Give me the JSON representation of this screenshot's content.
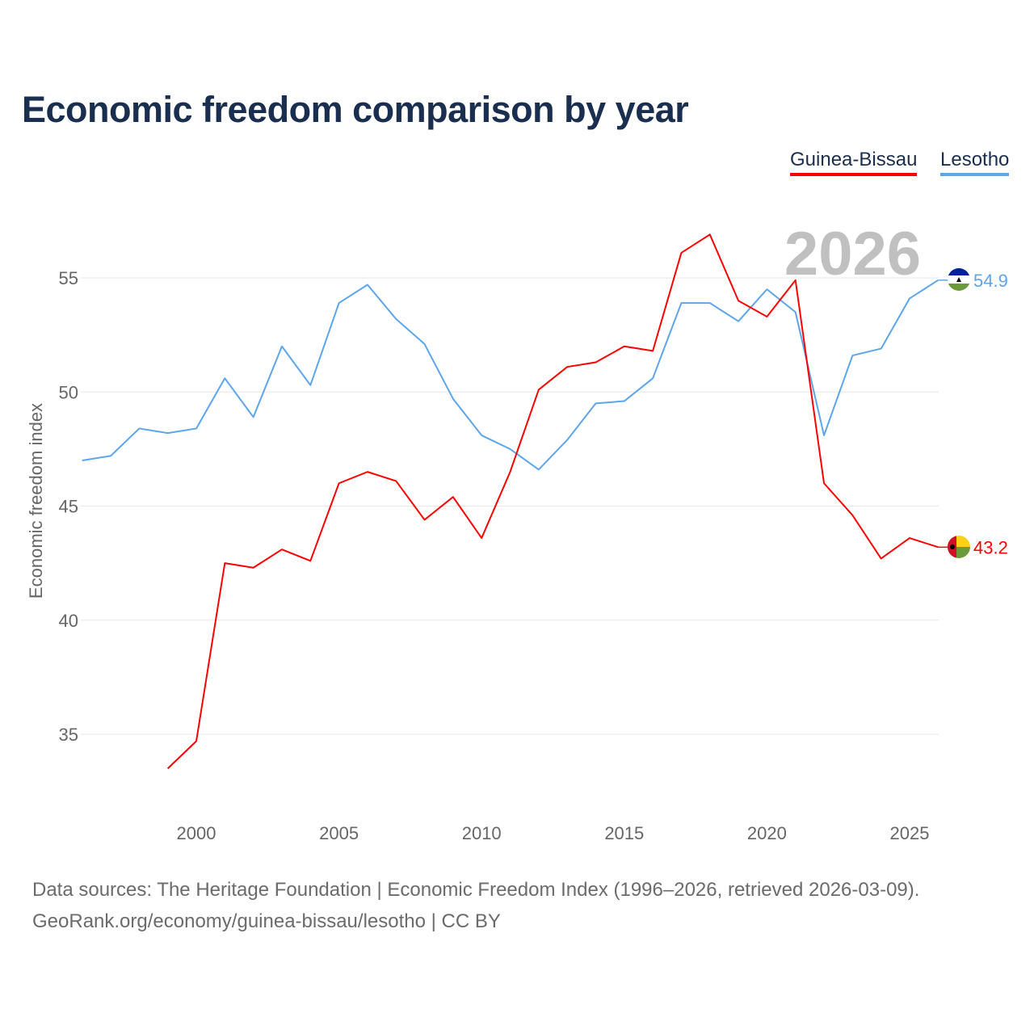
{
  "chart_data": {
    "type": "line",
    "title": "Economic freedom comparison by year",
    "xlabel": "",
    "ylabel": "Economic freedom index",
    "xlim": [
      1996,
      2026
    ],
    "ylim": [
      32,
      58
    ],
    "x_ticks": [
      2000,
      2005,
      2010,
      2015,
      2020,
      2025
    ],
    "y_ticks": [
      35,
      40,
      45,
      50,
      55
    ],
    "grid": true,
    "legend_position": "top-right",
    "year_watermark": "2026",
    "series": [
      {
        "name": "Guinea-Bissau",
        "color": "#ff0000",
        "end_label": "43.2",
        "x": [
          1999,
          2000,
          2001,
          2002,
          2003,
          2004,
          2005,
          2006,
          2007,
          2008,
          2009,
          2010,
          2011,
          2012,
          2013,
          2014,
          2015,
          2016,
          2017,
          2018,
          2019,
          2020,
          2021,
          2022,
          2023,
          2024,
          2025,
          2026
        ],
        "values": [
          33.5,
          34.7,
          42.5,
          42.3,
          43.1,
          42.6,
          46.0,
          46.5,
          46.1,
          44.4,
          45.4,
          43.6,
          46.5,
          50.1,
          51.1,
          51.3,
          52.0,
          51.8,
          56.1,
          56.9,
          54.0,
          53.3,
          54.9,
          46.0,
          44.6,
          42.7,
          43.6,
          43.2
        ]
      },
      {
        "name": "Lesotho",
        "color": "#5da5ea",
        "end_label": "54.9",
        "x": [
          1996,
          1997,
          1998,
          1999,
          2000,
          2001,
          2002,
          2003,
          2004,
          2005,
          2006,
          2007,
          2008,
          2009,
          2010,
          2011,
          2012,
          2013,
          2014,
          2015,
          2016,
          2017,
          2018,
          2019,
          2020,
          2021,
          2022,
          2023,
          2024,
          2025,
          2026
        ],
        "values": [
          47.0,
          47.2,
          48.4,
          48.2,
          48.4,
          50.6,
          48.9,
          52.0,
          50.3,
          53.9,
          54.7,
          53.2,
          52.1,
          49.7,
          48.1,
          47.5,
          46.6,
          47.9,
          49.5,
          49.6,
          50.6,
          53.9,
          53.9,
          53.1,
          54.5,
          53.5,
          48.1,
          51.6,
          51.9,
          54.1,
          54.9
        ]
      }
    ]
  },
  "footer": {
    "line1": "Data sources: The Heritage Foundation | Economic Freedom Index (1996–2026, retrieved 2026-03-09).",
    "line2": "GeoRank.org/economy/guinea-bissau/lesotho | CC BY"
  }
}
